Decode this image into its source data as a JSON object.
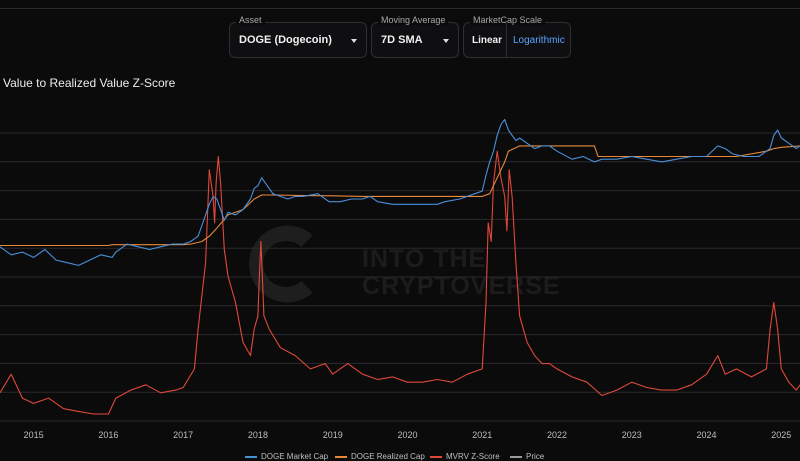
{
  "controls": {
    "asset": {
      "label": "Asset",
      "value": "DOGE (Dogecoin)"
    },
    "moving_average": {
      "label": "Moving Average",
      "value": "7D SMA"
    },
    "scale": {
      "label": "MarketCap Scale",
      "options": [
        "Linear",
        "Logarithmic"
      ],
      "selected": "Logarithmic"
    }
  },
  "watermark": {
    "line1": "INTO THE",
    "line2": "CRYPTOVERSE"
  },
  "colors": {
    "market_cap": "#4a90d9",
    "realized_cap": "#e8893a",
    "z_score": "#e0493a",
    "price": "#9a9a9a",
    "grid": "#2a2a2e"
  },
  "chart_data": {
    "type": "line",
    "title": "Value to Realized Value Z-Score",
    "x_ticks": [
      "2015",
      "2016",
      "2017",
      "2018",
      "2019",
      "2020",
      "2021",
      "2022",
      "2023",
      "2024",
      "2025"
    ],
    "xlim": [
      2014.55,
      2025.25
    ],
    "y_gridlines": 10,
    "y_range_relative": [
      0,
      1
    ],
    "legend_position": "bottom",
    "series": [
      {
        "name": "DOGE Market Cap",
        "x": [
          2014.55,
          2014.7,
          2014.85,
          2015.0,
          2015.15,
          2015.3,
          2015.45,
          2015.6,
          2015.75,
          2015.9,
          2016.05,
          2016.1,
          2016.25,
          2016.4,
          2016.55,
          2016.7,
          2016.85,
          2017.0,
          2017.1,
          2017.2,
          2017.3,
          2017.35,
          2017.4,
          2017.45,
          2017.5,
          2017.55,
          2017.6,
          2017.7,
          2017.8,
          2017.9,
          2017.95,
          2018.0,
          2018.05,
          2018.1,
          2018.2,
          2018.3,
          2018.4,
          2018.5,
          2018.6,
          2018.8,
          2018.95,
          2019.1,
          2019.25,
          2019.4,
          2019.5,
          2019.6,
          2019.8,
          2020.0,
          2020.2,
          2020.4,
          2020.5,
          2020.7,
          2020.9,
          2021.0,
          2021.05,
          2021.1,
          2021.15,
          2021.2,
          2021.25,
          2021.3,
          2021.35,
          2021.4,
          2021.45,
          2021.5,
          2021.6,
          2021.7,
          2021.8,
          2021.9,
          2022.0,
          2022.2,
          2022.35,
          2022.5,
          2022.6,
          2022.8,
          2023.0,
          2023.2,
          2023.4,
          2023.6,
          2023.8,
          2024.0,
          2024.15,
          2024.25,
          2024.35,
          2024.5,
          2024.7,
          2024.85,
          2024.9,
          2024.95,
          2025.0,
          2025.1,
          2025.2,
          2025.25
        ],
        "y": [
          0.66,
          0.63,
          0.64,
          0.62,
          0.65,
          0.61,
          0.6,
          0.59,
          0.61,
          0.63,
          0.62,
          0.64,
          0.67,
          0.66,
          0.65,
          0.66,
          0.67,
          0.67,
          0.68,
          0.7,
          0.78,
          0.82,
          0.85,
          0.84,
          0.8,
          0.76,
          0.79,
          0.78,
          0.8,
          0.84,
          0.88,
          0.89,
          0.92,
          0.9,
          0.86,
          0.85,
          0.84,
          0.85,
          0.85,
          0.86,
          0.83,
          0.83,
          0.84,
          0.84,
          0.85,
          0.83,
          0.82,
          0.82,
          0.82,
          0.82,
          0.83,
          0.84,
          0.86,
          0.87,
          0.93,
          0.98,
          1.02,
          1.08,
          1.12,
          1.14,
          1.1,
          1.08,
          1.06,
          1.07,
          1.05,
          1.03,
          1.04,
          1.04,
          1.02,
          0.99,
          1.0,
          0.98,
          0.99,
          0.99,
          1.0,
          0.99,
          0.98,
          0.99,
          1.0,
          1.0,
          1.04,
          1.03,
          1.01,
          1.0,
          1.0,
          1.03,
          1.08,
          1.1,
          1.07,
          1.05,
          1.03,
          1.04
        ]
      },
      {
        "name": "DOGE Realized Cap",
        "x": [
          2014.55,
          2016.0,
          2016.05,
          2017.0,
          2017.1,
          2017.25,
          2017.35,
          2017.45,
          2017.6,
          2017.8,
          2017.95,
          2018.05,
          2018.2,
          2018.6,
          2019.0,
          2019.4,
          2019.8,
          2020.2,
          2020.6,
          2020.9,
          2021.0,
          2021.1,
          2021.2,
          2021.3,
          2021.35,
          2021.5,
          2021.8,
          2022.2,
          2022.5,
          2022.55,
          2023.0,
          2023.5,
          2024.0,
          2024.2,
          2024.4,
          2024.8,
          2024.9,
          2025.0,
          2025.25
        ],
        "y": [
          0.665,
          0.665,
          0.668,
          0.668,
          0.67,
          0.68,
          0.7,
          0.73,
          0.78,
          0.8,
          0.84,
          0.855,
          0.855,
          0.853,
          0.852,
          0.85,
          0.85,
          0.85,
          0.85,
          0.85,
          0.85,
          0.86,
          0.92,
          0.98,
          1.02,
          1.04,
          1.04,
          1.04,
          1.04,
          1.0,
          1.0,
          1.0,
          1.0,
          1.0,
          1.0,
          1.02,
          1.03,
          1.035,
          1.04
        ]
      },
      {
        "name": "MVRV Z-Score",
        "x": [
          2014.55,
          2014.7,
          2014.85,
          2015.0,
          2015.2,
          2015.4,
          2015.6,
          2015.8,
          2016.0,
          2016.1,
          2016.3,
          2016.5,
          2016.7,
          2016.9,
          2017.0,
          2017.15,
          2017.2,
          2017.3,
          2017.35,
          2017.4,
          2017.42,
          2017.44,
          2017.47,
          2017.5,
          2017.55,
          2017.6,
          2017.7,
          2017.8,
          2017.9,
          2017.95,
          2018.0,
          2018.02,
          2018.04,
          2018.08,
          2018.15,
          2018.3,
          2018.5,
          2018.7,
          2018.9,
          2019.0,
          2019.2,
          2019.4,
          2019.6,
          2019.8,
          2020.0,
          2020.2,
          2020.4,
          2020.6,
          2020.8,
          2021.0,
          2021.05,
          2021.08,
          2021.12,
          2021.15,
          2021.2,
          2021.25,
          2021.3,
          2021.33,
          2021.36,
          2021.4,
          2021.45,
          2021.5,
          2021.6,
          2021.7,
          2021.8,
          2021.9,
          2022.0,
          2022.2,
          2022.4,
          2022.6,
          2022.8,
          2023.0,
          2023.2,
          2023.4,
          2023.6,
          2023.8,
          2024.0,
          2024.15,
          2024.25,
          2024.4,
          2024.6,
          2024.8,
          2024.85,
          2024.9,
          2024.95,
          2025.0,
          2025.1,
          2025.2,
          2025.25
        ],
        "y": [
          0.11,
          0.18,
          0.09,
          0.07,
          0.09,
          0.05,
          0.04,
          0.03,
          0.03,
          0.09,
          0.12,
          0.14,
          0.11,
          0.12,
          0.13,
          0.2,
          0.35,
          0.6,
          0.95,
          0.85,
          0.75,
          0.9,
          1.0,
          0.9,
          0.65,
          0.55,
          0.45,
          0.3,
          0.25,
          0.35,
          0.4,
          0.55,
          0.68,
          0.4,
          0.35,
          0.28,
          0.25,
          0.2,
          0.22,
          0.18,
          0.22,
          0.18,
          0.16,
          0.17,
          0.15,
          0.15,
          0.16,
          0.15,
          0.18,
          0.2,
          0.45,
          0.75,
          0.68,
          0.9,
          1.02,
          0.92,
          0.85,
          0.72,
          0.95,
          0.85,
          0.6,
          0.4,
          0.3,
          0.25,
          0.22,
          0.22,
          0.2,
          0.17,
          0.15,
          0.1,
          0.12,
          0.15,
          0.13,
          0.12,
          0.12,
          0.14,
          0.18,
          0.25,
          0.18,
          0.2,
          0.17,
          0.2,
          0.35,
          0.45,
          0.35,
          0.2,
          0.15,
          0.12,
          0.14
        ]
      }
    ],
    "legend": [
      "DOGE Market Cap",
      "DOGE Realized Cap",
      "MVRV Z-Score",
      "Price"
    ]
  }
}
